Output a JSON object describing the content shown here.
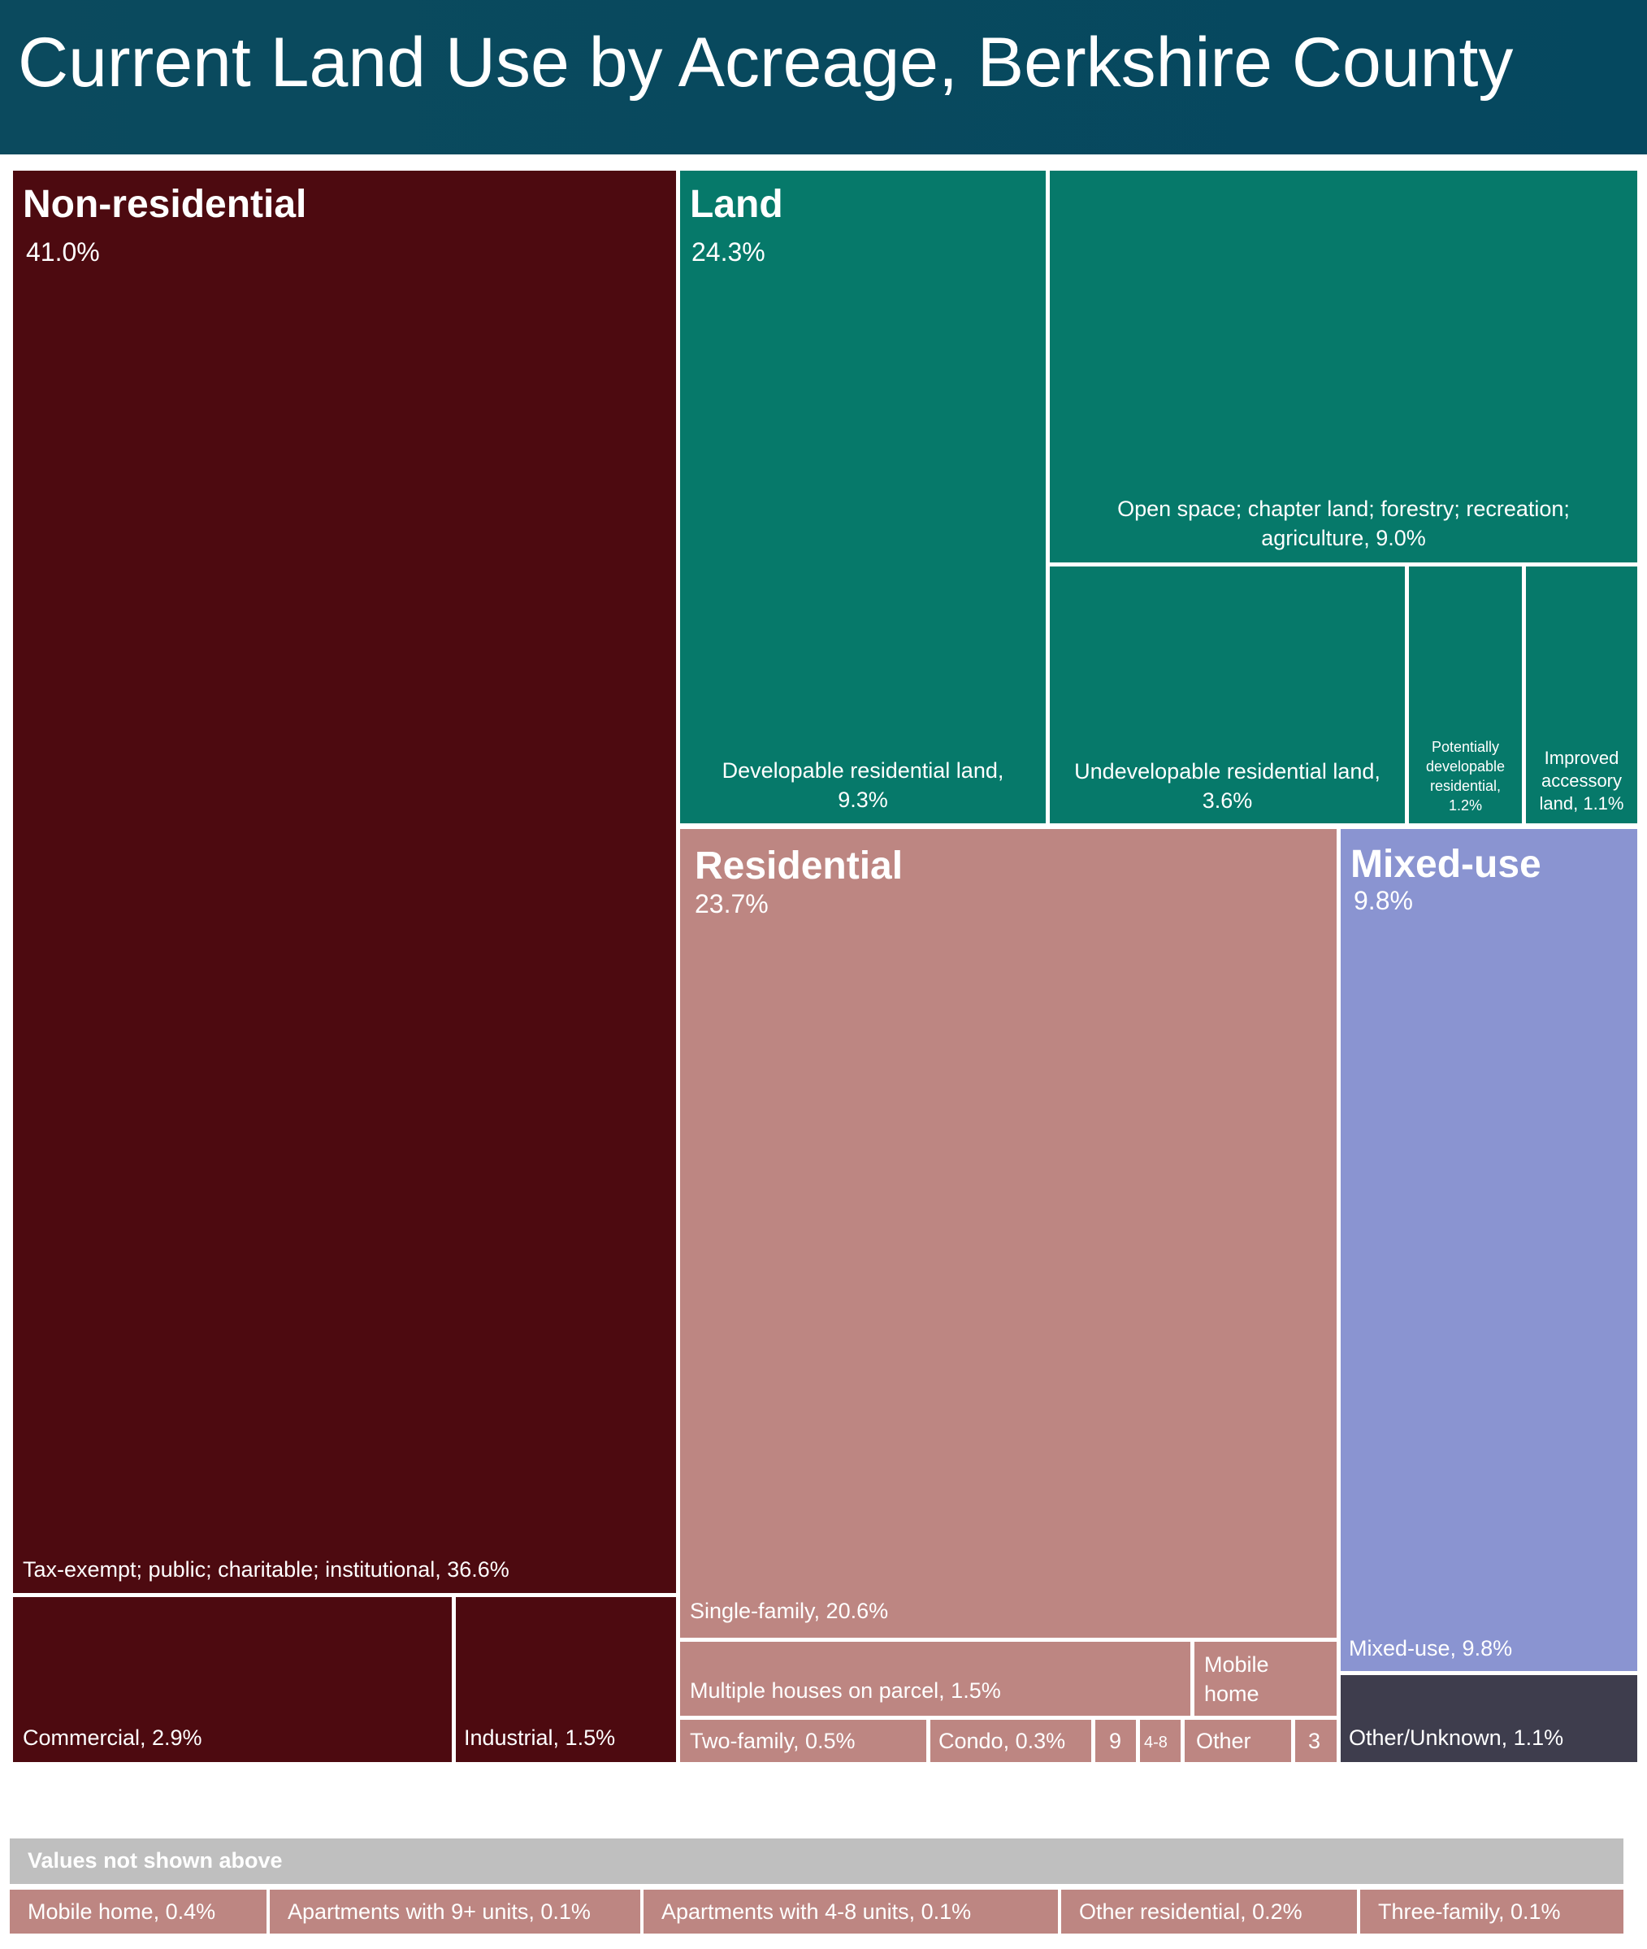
{
  "title": "Current Land Use by Acreage, Berkshire County",
  "colors": {
    "header": "#05485f",
    "non_residential": "#4d0a10",
    "land": "#06796a",
    "residential": "#bd8682",
    "mixed_use": "#8a94d1",
    "other_unknown": "#3e3d4d",
    "footer_header": "#bfbfbf"
  },
  "chart_data": {
    "type": "treemap",
    "title": "Current Land Use by Acreage, Berkshire County",
    "unit": "% of acreage",
    "groups": [
      {
        "name": "Non-residential",
        "pct_label": "41.0%",
        "value": 41.0,
        "children": [
          {
            "label": "Tax-exempt; public; charitable; institutional, 36.6%",
            "value": 36.6
          },
          {
            "label": "Commercial, 2.9%",
            "value": 2.9
          },
          {
            "label": "Industrial, 1.5%",
            "value": 1.5
          }
        ]
      },
      {
        "name": "Land",
        "pct_label": "24.3%",
        "value": 24.3,
        "children": [
          {
            "label": "Developable residential land, 9.3%",
            "label_line1": "Developable residential land,",
            "label_line2": "9.3%",
            "value": 9.3
          },
          {
            "label": "Open space; chapter land; forestry; recreation; agriculture, 9.0%",
            "label_line1": "Open space; chapter land; forestry; recreation;",
            "label_line2": "agriculture, 9.0%",
            "value": 9.0
          },
          {
            "label": "Undevelopable residential land, 3.6%",
            "label_line1": "Undevelopable residential land,",
            "label_line2": "3.6%",
            "value": 3.6
          },
          {
            "label": "Potentially developable residential, 1.2%",
            "label_lines": [
              "Potentially",
              "developable",
              "residential,",
              "1.2%"
            ],
            "value": 1.2
          },
          {
            "label": "Improved accessory land, 1.1%",
            "label_lines": [
              "Improved",
              "accessory",
              "land, 1.1%"
            ],
            "value": 1.1
          }
        ]
      },
      {
        "name": "Residential",
        "pct_label": "23.7%",
        "value": 23.7,
        "children": [
          {
            "label": "Single-family, 20.6%",
            "value": 20.6
          },
          {
            "label": "Multiple houses on parcel, 1.5%",
            "value": 1.5
          },
          {
            "label": "Mobile home",
            "label_lines": [
              "Mobile",
              "home"
            ],
            "value": 0.4
          },
          {
            "label": "Two-family, 0.5%",
            "value": 0.5
          },
          {
            "label": "Condo, 0.3%",
            "value": 0.3
          },
          {
            "label": "9",
            "value": 0.1
          },
          {
            "label": "4-8",
            "value": 0.1
          },
          {
            "label": "Other",
            "value": 0.2
          },
          {
            "label": "3",
            "value": 0.1
          }
        ]
      },
      {
        "name": "Mixed-use",
        "pct_label": "9.8%",
        "value": 9.8,
        "children": [
          {
            "label": "Mixed-use, 9.8%",
            "value": 9.8
          },
          {
            "label": "Other/Unknown, 1.1%",
            "value": 1.1
          }
        ]
      }
    ]
  },
  "footer": {
    "heading": "Values not shown above",
    "items": [
      "Mobile home, 0.4%",
      "Apartments with 9+ units, 0.1%",
      "Apartments with 4-8 units, 0.1%",
      "Other residential, 0.2%",
      "Three-family, 0.1%"
    ]
  }
}
